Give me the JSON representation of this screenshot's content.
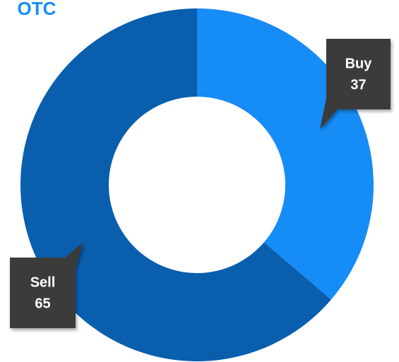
{
  "chart_data": {
    "type": "donut",
    "title": "OTC",
    "categories": [
      "Buy",
      "Sell"
    ],
    "values": [
      37,
      65
    ],
    "colors": [
      "#168cf7",
      "#0a5eae"
    ]
  }
}
